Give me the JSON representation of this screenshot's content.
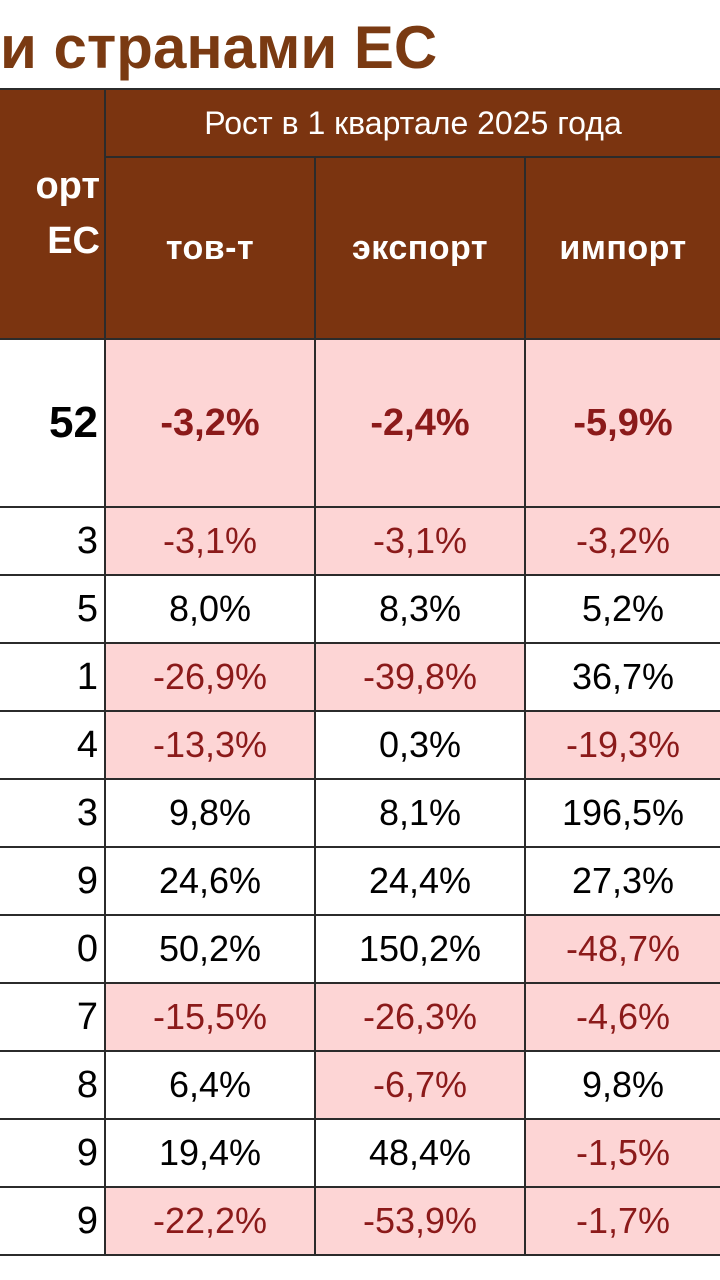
{
  "title": "и странами ЕС",
  "header": {
    "group_label": "Рост в 1 квартале 2025 года",
    "left_line1": "орт",
    "left_line2": "ЕС",
    "columns": [
      "тов-т",
      "экспорт",
      "импорт"
    ]
  },
  "rows": [
    {
      "left": "52",
      "total": true,
      "cells": [
        {
          "v": "-3,2%",
          "neg": true
        },
        {
          "v": "-2,4%",
          "neg": true
        },
        {
          "v": "-5,9%",
          "neg": true
        }
      ]
    },
    {
      "left": "3",
      "cells": [
        {
          "v": "-3,1%",
          "neg": true
        },
        {
          "v": "-3,1%",
          "neg": true
        },
        {
          "v": "-3,2%",
          "neg": true
        }
      ]
    },
    {
      "left": "5",
      "cells": [
        {
          "v": "8,0%",
          "neg": false
        },
        {
          "v": "8,3%",
          "neg": false
        },
        {
          "v": "5,2%",
          "neg": false
        }
      ]
    },
    {
      "left": "1",
      "cells": [
        {
          "v": "-26,9%",
          "neg": true
        },
        {
          "v": "-39,8%",
          "neg": true
        },
        {
          "v": "36,7%",
          "neg": false
        }
      ]
    },
    {
      "left": "4",
      "cells": [
        {
          "v": "-13,3%",
          "neg": true
        },
        {
          "v": "0,3%",
          "neg": false
        },
        {
          "v": "-19,3%",
          "neg": true
        }
      ]
    },
    {
      "left": "3",
      "cells": [
        {
          "v": "9,8%",
          "neg": false
        },
        {
          "v": "8,1%",
          "neg": false
        },
        {
          "v": "196,5%",
          "neg": false
        }
      ]
    },
    {
      "left": "9",
      "cells": [
        {
          "v": "24,6%",
          "neg": false
        },
        {
          "v": "24,4%",
          "neg": false
        },
        {
          "v": "27,3%",
          "neg": false
        }
      ]
    },
    {
      "left": "0",
      "cells": [
        {
          "v": "50,2%",
          "neg": false
        },
        {
          "v": "150,2%",
          "neg": false
        },
        {
          "v": "-48,7%",
          "neg": true
        }
      ]
    },
    {
      "left": "7",
      "cells": [
        {
          "v": "-15,5%",
          "neg": true
        },
        {
          "v": "-26,3%",
          "neg": true
        },
        {
          "v": "-4,6%",
          "neg": true
        }
      ]
    },
    {
      "left": "8",
      "cells": [
        {
          "v": "6,4%",
          "neg": false
        },
        {
          "v": "-6,7%",
          "neg": true
        },
        {
          "v": "9,8%",
          "neg": false
        }
      ]
    },
    {
      "left": "9",
      "cells": [
        {
          "v": "19,4%",
          "neg": false
        },
        {
          "v": "48,4%",
          "neg": false
        },
        {
          "v": "-1,5%",
          "neg": true
        }
      ]
    },
    {
      "left": "9",
      "cells": [
        {
          "v": "-22,2%",
          "neg": true
        },
        {
          "v": "-53,9%",
          "neg": true
        },
        {
          "v": "-1,7%",
          "neg": true
        }
      ]
    }
  ]
}
